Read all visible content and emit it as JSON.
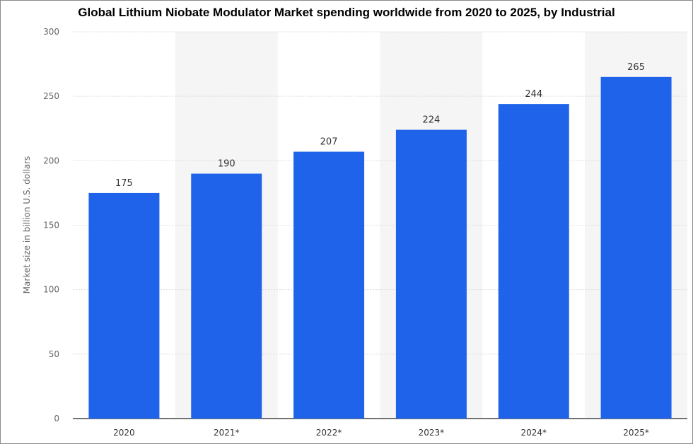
{
  "chart_data": {
    "type": "bar",
    "title": "Global Lithium Niobate Modulator Market spending worldwide from 2020 to 2025, by Industrial",
    "ylabel": "Market size in billion U.S. dollars",
    "xlabel": "",
    "categories": [
      "2020",
      "2021*",
      "2022*",
      "2023*",
      "2024*",
      "2025*"
    ],
    "values": [
      175,
      190,
      207,
      224,
      244,
      265
    ],
    "data_labels": [
      "175",
      "190",
      "207",
      "224",
      "244",
      "265"
    ],
    "ylim": [
      0,
      300
    ],
    "yticks": [
      0,
      50,
      100,
      150,
      200,
      250,
      300
    ],
    "grid": true,
    "bar_color": "#1e63e9",
    "alt_band_color": "#f5f5f5"
  }
}
